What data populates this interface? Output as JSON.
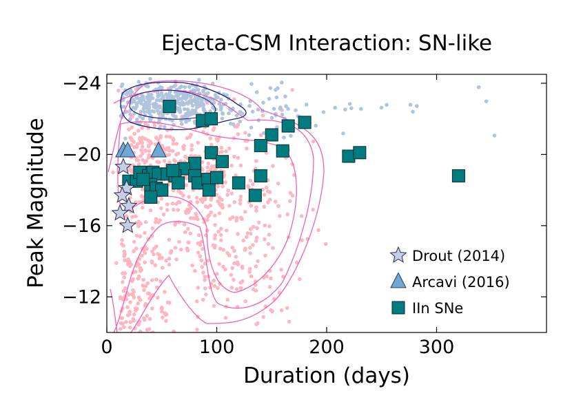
{
  "chart_data": {
    "type": "scatter",
    "title": "Ejecta-CSM Interaction: SN-like",
    "xlabel": "Duration (days)",
    "ylabel": "Peak Magnitude",
    "xlim": [
      0,
      400
    ],
    "ylim": [
      -10,
      -24.5
    ],
    "yaxis_inverted": true,
    "xticks": [
      0,
      100,
      200,
      300
    ],
    "yticks": [
      -24,
      -20,
      -16,
      -12
    ],
    "xtick_labels": [
      "0",
      "100",
      "200",
      "300"
    ],
    "ytick_labels": [
      "−24",
      "−20",
      "−16",
      "−12"
    ],
    "legend_position": "lower-right",
    "colors": {
      "model_pink": "#ffb6c1",
      "model_blue": "#b0c4de",
      "contour_pink": "#ee5fb5",
      "contour_blue": "#1a1a80",
      "drout": "#c8cde6",
      "arcavi": "#6fa8d6",
      "iin": "#007b7f"
    },
    "series": [
      {
        "name": "Drout (2014)",
        "marker": "star",
        "color": "#c8cde6",
        "points": [
          [
            15,
            -19.3
          ],
          [
            18,
            -18.1
          ],
          [
            14,
            -17.7
          ],
          [
            20,
            -17.1
          ],
          [
            12,
            -16.7
          ],
          [
            19,
            -16.0
          ]
        ]
      },
      {
        "name": "Arcavi (2016)",
        "marker": "triangle",
        "color": "#6fa8d6",
        "points": [
          [
            15,
            -20.2
          ],
          [
            19,
            -20.2
          ],
          [
            47,
            -20.2
          ]
        ]
      },
      {
        "name": "IIn SNe",
        "marker": "square",
        "color": "#007b7f",
        "points": [
          [
            57,
            -22.7
          ],
          [
            87,
            -21.9
          ],
          [
            95,
            -22.0
          ],
          [
            165,
            -21.6
          ],
          [
            180,
            -21.8
          ],
          [
            150,
            -21.1
          ],
          [
            140,
            -20.5
          ],
          [
            160,
            -20.2
          ],
          [
            95,
            -20.1
          ],
          [
            220,
            -19.9
          ],
          [
            230,
            -20.1
          ],
          [
            105,
            -19.6
          ],
          [
            80,
            -19.5
          ],
          [
            70,
            -19.2
          ],
          [
            20,
            -18.5
          ],
          [
            27,
            -18.5
          ],
          [
            30,
            -19.0
          ],
          [
            38,
            -18.8
          ],
          [
            42,
            -19.0
          ],
          [
            47,
            -18.9
          ],
          [
            40,
            -18.3
          ],
          [
            45,
            -18.1
          ],
          [
            50,
            -18.0
          ],
          [
            40,
            -17.6
          ],
          [
            55,
            -18.9
          ],
          [
            62,
            -18.8
          ],
          [
            65,
            -18.4
          ],
          [
            80,
            -18.8
          ],
          [
            83,
            -18.4
          ],
          [
            92,
            -18.6
          ],
          [
            93,
            -18.0
          ],
          [
            100,
            -18.7
          ],
          [
            120,
            -18.4
          ],
          [
            135,
            -17.7
          ],
          [
            140,
            -18.8
          ],
          [
            320,
            -18.8
          ],
          [
            33,
            -18.6
          ],
          [
            60,
            -19.1
          ]
        ]
      }
    ],
    "model_samples": [
      {
        "name": "",
        "color": "#ffb6c1",
        "count": 820
      },
      {
        "name": "",
        "color": "#b0c4de",
        "count": 470
      }
    ]
  }
}
